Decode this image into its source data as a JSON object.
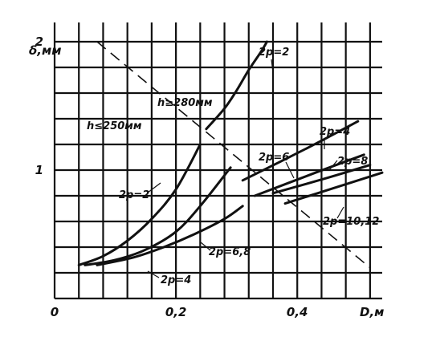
{
  "chart_data": {
    "type": "line",
    "xlabel": "D,м",
    "ylabel": "δ,мм",
    "xlim": [
      0,
      0.54
    ],
    "ylim": [
      0,
      2.15
    ],
    "x_ticks": [
      {
        "value": 0,
        "label": "0"
      },
      {
        "value": 0.2,
        "label": "0,2"
      },
      {
        "value": 0.4,
        "label": "0,4"
      }
    ],
    "y_ticks": [
      {
        "value": 1,
        "label": "1"
      },
      {
        "value": 2,
        "label": "2"
      }
    ],
    "grid_step_x": 0.04,
    "grid_step_y": 0.2,
    "grid": true,
    "series": [
      {
        "name": "2p=2",
        "group": "h≤250мм",
        "points": [
          [
            0.04,
            0.26
          ],
          [
            0.08,
            0.33
          ],
          [
            0.12,
            0.45
          ],
          [
            0.16,
            0.62
          ],
          [
            0.2,
            0.85
          ],
          [
            0.24,
            1.2
          ]
        ]
      },
      {
        "name": "2p=4",
        "group": "h≤250мм",
        "points": [
          [
            0.05,
            0.26
          ],
          [
            0.1,
            0.3
          ],
          [
            0.15,
            0.38
          ],
          [
            0.2,
            0.52
          ],
          [
            0.24,
            0.72
          ],
          [
            0.29,
            1.02
          ]
        ]
      },
      {
        "name": "2p=6,8",
        "group": "h≤250мм",
        "points": [
          [
            0.07,
            0.26
          ],
          [
            0.13,
            0.32
          ],
          [
            0.18,
            0.4
          ],
          [
            0.23,
            0.5
          ],
          [
            0.28,
            0.62
          ],
          [
            0.31,
            0.72
          ]
        ]
      },
      {
        "name": "2p=2",
        "group": "h≥280мм",
        "points": [
          [
            0.25,
            1.32
          ],
          [
            0.28,
            1.48
          ],
          [
            0.3,
            1.62
          ],
          [
            0.32,
            1.78
          ],
          [
            0.34,
            1.92
          ],
          [
            0.35,
            2.0
          ]
        ]
      },
      {
        "name": "2p=4",
        "group": "h≥280мм",
        "points": [
          [
            0.31,
            0.92
          ],
          [
            0.42,
            1.18
          ],
          [
            0.5,
            1.38
          ]
        ]
      },
      {
        "name": "2p=6",
        "group": "h≥280мм",
        "points": [
          [
            0.33,
            0.8
          ],
          [
            0.43,
            0.98
          ],
          [
            0.51,
            1.12
          ]
        ]
      },
      {
        "name": "2p=8",
        "group": "h≥280мм",
        "points": [
          [
            0.36,
            0.82
          ],
          [
            0.45,
            0.94
          ],
          [
            0.52,
            1.04
          ]
        ]
      },
      {
        "name": "2p=10,12",
        "group": "h≥280мм",
        "points": [
          [
            0.38,
            0.74
          ],
          [
            0.46,
            0.86
          ],
          [
            0.54,
            0.98
          ]
        ]
      }
    ],
    "boundary": {
      "points": [
        [
          0.07,
          2.0
        ],
        [
          0.52,
          0.24
        ]
      ]
    },
    "annotations": [
      {
        "text": "h≥280мм"
      },
      {
        "text": "h≤250мм"
      },
      {
        "text": "2p=2"
      },
      {
        "text": "2p=2"
      },
      {
        "text": "2p=6,8"
      },
      {
        "text": "2p=4"
      },
      {
        "text": "2p=4"
      },
      {
        "text": "2p=6"
      },
      {
        "text": "2p=8"
      },
      {
        "text": "2p=10,12"
      }
    ]
  }
}
